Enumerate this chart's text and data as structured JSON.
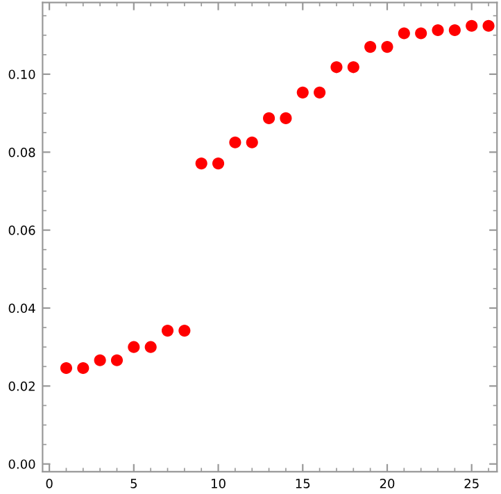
{
  "chart_data": {
    "type": "scatter",
    "x": [
      1,
      2,
      3,
      4,
      5,
      6,
      7,
      8,
      9,
      10,
      11,
      12,
      13,
      14,
      15,
      16,
      17,
      18,
      19,
      20,
      21,
      22,
      23,
      24,
      25,
      26
    ],
    "series": [
      {
        "color": "#ff0000",
        "values": [
          0.0246,
          0.0246,
          0.0266,
          0.0266,
          0.03,
          0.03,
          0.0342,
          0.0342,
          0.0771,
          0.0771,
          0.0825,
          0.0825,
          0.0887,
          0.0887,
          0.0953,
          0.0953,
          0.1018,
          0.1018,
          0.107,
          0.107,
          0.1105,
          0.1105,
          0.1113,
          0.1113,
          0.1124,
          0.1124
        ]
      }
    ],
    "xlim": [
      -0.4,
      26.5
    ],
    "ylim": [
      -0.002,
      0.1184
    ],
    "xticks": [
      0,
      5,
      10,
      15,
      20,
      25
    ],
    "yticks": [
      {
        "value": 0,
        "label": "0.00"
      },
      {
        "value": 0.02,
        "label": "0.02"
      },
      {
        "value": 0.04,
        "label": "0.04"
      },
      {
        "value": 0.06,
        "label": "0.06"
      },
      {
        "value": 0.08,
        "label": "0.08"
      },
      {
        "value": 0.1,
        "label": "0.10"
      }
    ],
    "marker": "circle",
    "grid": false,
    "legend": false
  }
}
